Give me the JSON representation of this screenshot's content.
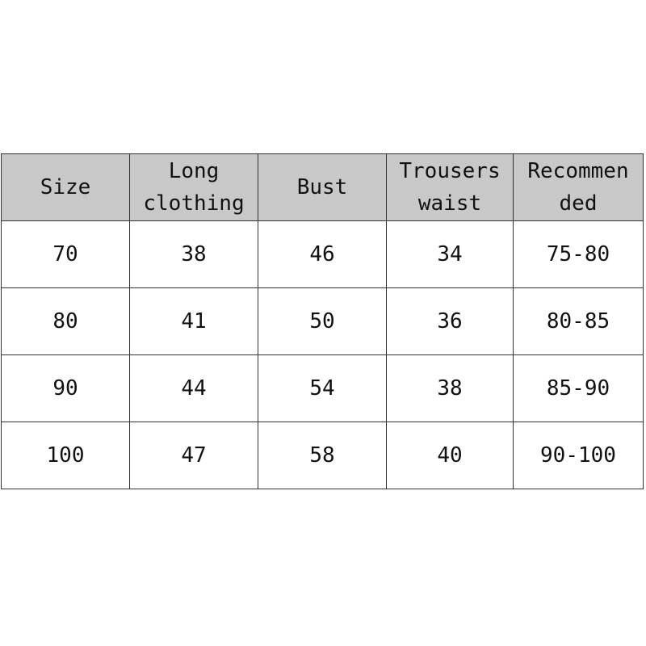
{
  "table": {
    "headers": [
      "Size",
      "Long clothing",
      "Bust",
      "Trousers waist",
      "Recommen ded"
    ],
    "rows": [
      [
        "70",
        "38",
        "46",
        "34",
        "75-80"
      ],
      [
        "80",
        "41",
        "50",
        "36",
        "80-85"
      ],
      [
        "90",
        "44",
        "54",
        "38",
        "85-90"
      ],
      [
        "100",
        "47",
        "58",
        "40",
        "90-100"
      ]
    ]
  },
  "colors": {
    "header_bg": "#c8c8c8",
    "border": "#333333"
  }
}
